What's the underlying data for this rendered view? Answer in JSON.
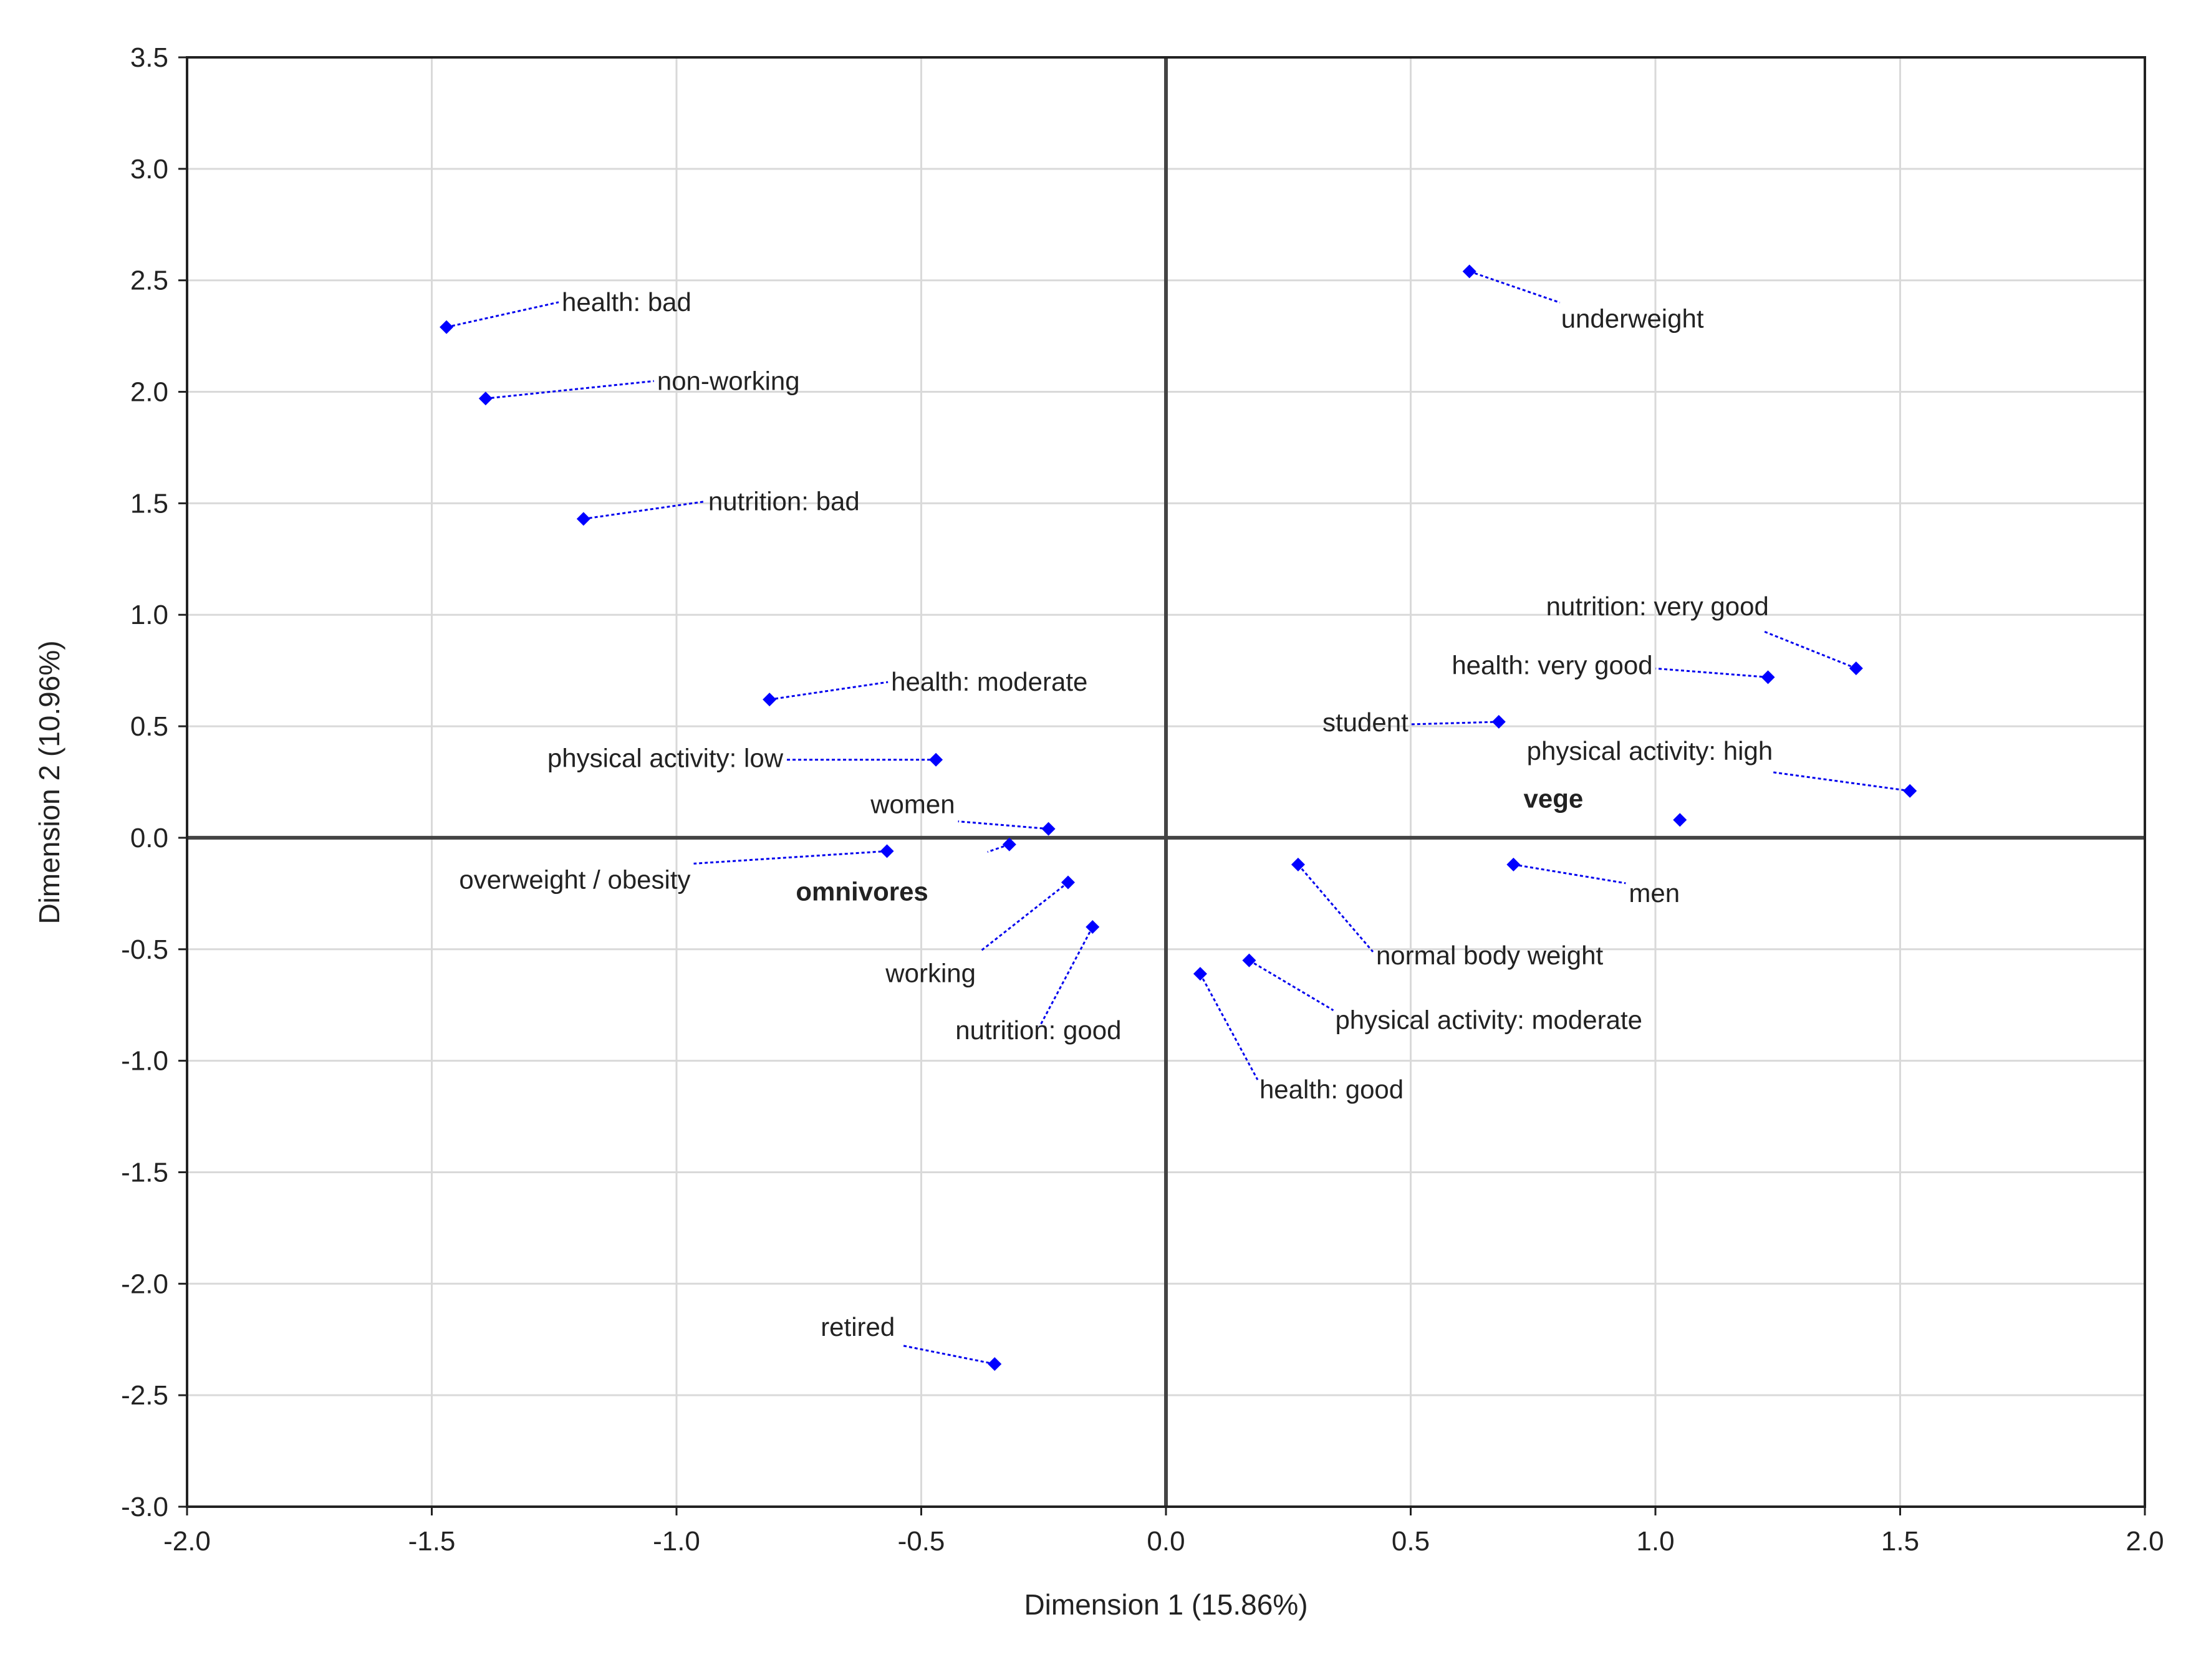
{
  "chart_data": {
    "type": "scatter",
    "title": "",
    "xlabel": "Dimension 1 (15.86%)",
    "ylabel": "Dimension 2 (10.96%)",
    "xlim": [
      -2.0,
      2.0
    ],
    "ylim": [
      -3.0,
      3.5
    ],
    "grid": true,
    "x_ticks": [
      "-2.0",
      "-1.5",
      "-1.0",
      "-0.5",
      "0.0",
      "0.5",
      "1.0",
      "1.5",
      "2.0"
    ],
    "y_ticks": [
      "3.5",
      "3.0",
      "2.5",
      "2.0",
      "1.5",
      "1.0",
      "0.5",
      "0.0",
      "-0.5",
      "-1.0",
      "-1.5",
      "-2.0",
      "-2.5",
      "-3.0"
    ],
    "points": [
      {
        "label": "health: bad",
        "x": -1.47,
        "y": 2.29
      },
      {
        "label": "non-working",
        "x": -1.39,
        "y": 1.97
      },
      {
        "label": "nutrition: bad",
        "x": -1.19,
        "y": 1.43
      },
      {
        "label": "health: moderate",
        "x": -0.81,
        "y": 0.62
      },
      {
        "label": "physical activity: low",
        "x": -0.47,
        "y": 0.35
      },
      {
        "label": "women",
        "x": -0.24,
        "y": 0.04
      },
      {
        "label": "overweight / obesity",
        "x": -0.57,
        "y": -0.06
      },
      {
        "label": "omnivores",
        "x": -0.32,
        "y": -0.03,
        "group": true
      },
      {
        "label": "working",
        "x": -0.2,
        "y": -0.2
      },
      {
        "label": "nutrition: good",
        "x": -0.15,
        "y": -0.4
      },
      {
        "label": "retired",
        "x": -0.35,
        "y": -2.36
      },
      {
        "label": "underweight",
        "x": 0.62,
        "y": 2.54
      },
      {
        "label": "nutrition: very good",
        "x": 1.41,
        "y": 0.76
      },
      {
        "label": "health: very good",
        "x": 1.23,
        "y": 0.72
      },
      {
        "label": "student",
        "x": 0.68,
        "y": 0.52
      },
      {
        "label": "physical activity: high",
        "x": 1.52,
        "y": 0.21
      },
      {
        "label": "vege",
        "x": 1.05,
        "y": 0.08,
        "group": true
      },
      {
        "label": "men",
        "x": 0.71,
        "y": -0.12
      },
      {
        "label": "normal body weight",
        "x": 0.27,
        "y": -0.12
      },
      {
        "label": "physical activity: moderate",
        "x": 0.17,
        "y": -0.55
      },
      {
        "label": "health: good",
        "x": 0.07,
        "y": -0.61
      }
    ]
  },
  "colors": {
    "marker": "#0000ff",
    "leader": "#0000ee",
    "omnivores_label": "#1a1aa8",
    "vege_label": "#0e5a5a"
  }
}
